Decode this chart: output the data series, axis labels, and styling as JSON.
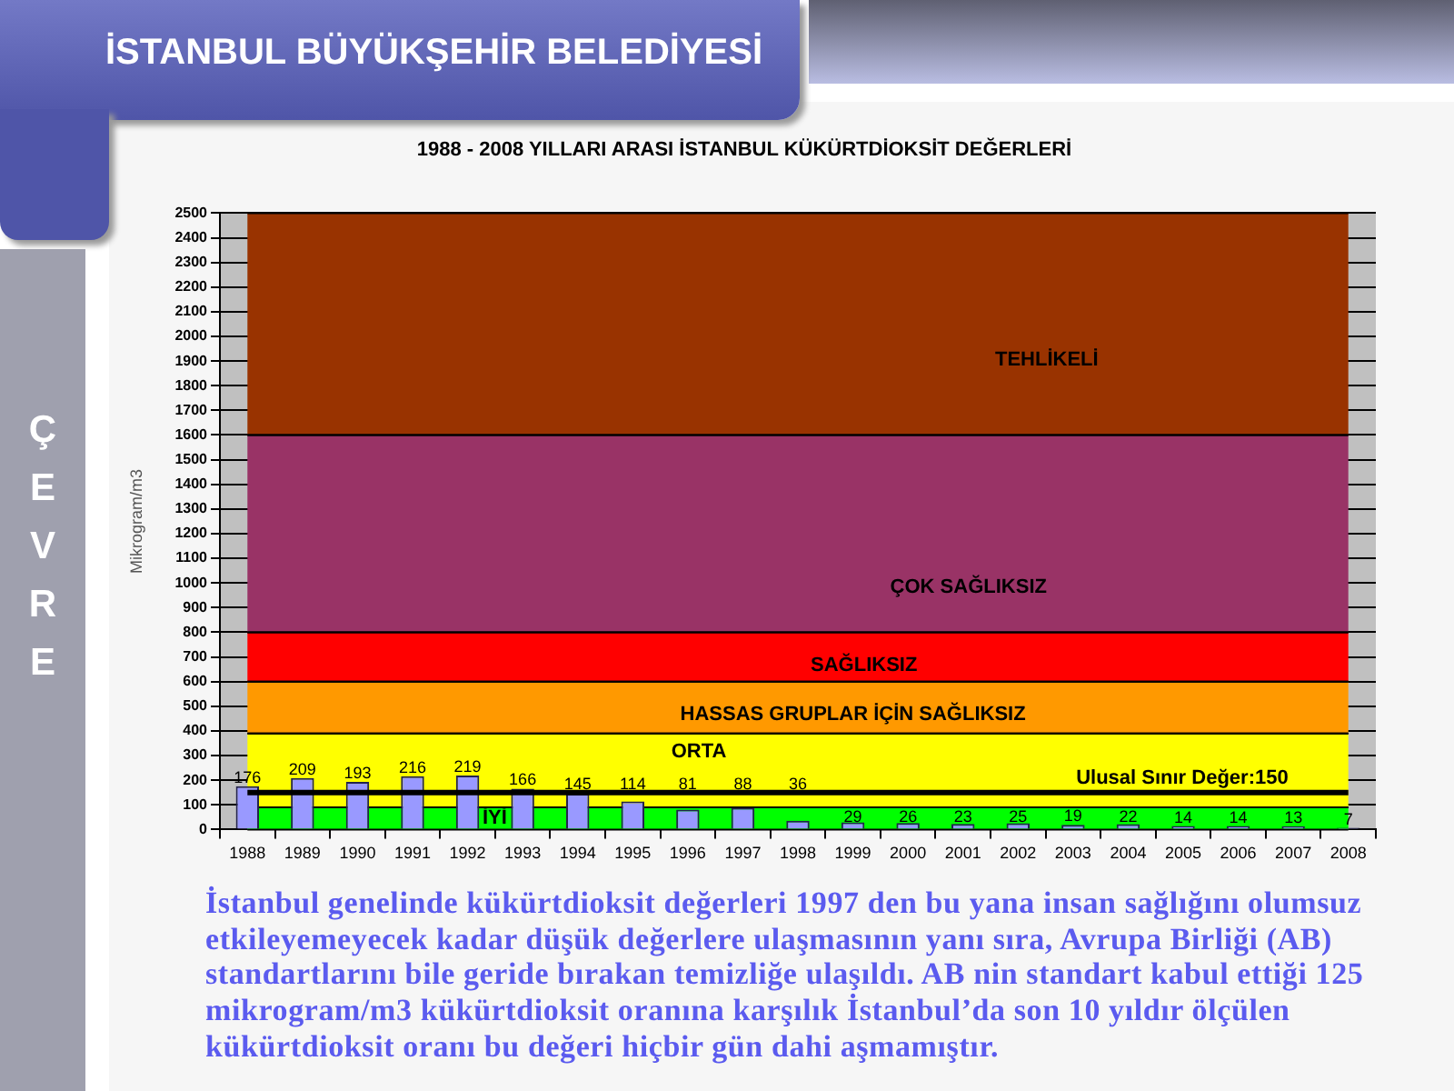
{
  "chart_data": {
    "type": "bar",
    "title": "1988 - 2008 YILLARI ARASI İSTANBUL KÜKÜRTDİOKSİT DEĞERLERİ",
    "ylabel": "Mikrogram/m3",
    "categories": [
      "1988",
      "1989",
      "1990",
      "1991",
      "1992",
      "1993",
      "1994",
      "1995",
      "1996",
      "1997",
      "1998",
      "1999",
      "2000",
      "2001",
      "2002",
      "2003",
      "2004",
      "2005",
      "2006",
      "2007",
      "2008"
    ],
    "values": [
      176,
      209,
      193,
      216,
      219,
      166,
      145,
      114,
      81,
      88,
      36,
      29,
      26,
      23,
      25,
      19,
      22,
      14,
      14,
      13,
      7
    ],
    "color": "#9999ff",
    "data_labels": true,
    "ylim": [
      0,
      2500
    ],
    "yticks": [
      0,
      100,
      200,
      300,
      400,
      500,
      600,
      700,
      800,
      900,
      1000,
      1100,
      1200,
      1300,
      1400,
      1500,
      1600,
      1700,
      1800,
      1900,
      2000,
      2100,
      2200,
      2300,
      2400,
      2500
    ],
    "grid": "y",
    "bands": [
      {
        "axis": "y",
        "from": 0,
        "to": 90,
        "label": "İYİ",
        "color": "#00ff00"
      },
      {
        "axis": "y",
        "from": 90,
        "to": 390,
        "label": "ORTA",
        "color": "#ffff00"
      },
      {
        "axis": "y",
        "from": 390,
        "to": 600,
        "label": "HASSAS GRUPLAR İÇİN SAĞLIKSIZ",
        "color": "#ff9900"
      },
      {
        "axis": "y",
        "from": 600,
        "to": 800,
        "label": "SAĞLIKSIZ",
        "color": "#ff0000"
      },
      {
        "axis": "y",
        "from": 800,
        "to": 1600,
        "label": "ÇOK SAĞLIKSIZ",
        "color": "#993366"
      },
      {
        "axis": "y",
        "from": 1600,
        "to": 2500,
        "label": "TEHLİKELİ",
        "color": "#993300"
      }
    ],
    "ref_lines": [
      {
        "axis": "y",
        "value": 150,
        "label": "Ulusal Sınır Değer:150",
        "color": "#000000"
      }
    ],
    "annotations": [
      "İSTANBUL BÜYÜKŞEHİR BELEDİYESİ",
      "ÇEVRE",
      "İstanbul genelinde kükürtdioksit değerleri 1997 den bu yana insan sağlığını olumsuz etkileyemeyecek kadar düşük değerlere ulaşmasının yanı sıra, Avrupa Birliği (AB) standartlarını bile geride bırakan temizliğe ulaşıldı. AB nin standart kabul ettiği 125 mikrogram/m3 kükürtdioksit oranına karşılık İstanbul’da son 10 yıldır ölçülen kükürtdioksit oranı bu değeri hiçbir gün dahi aşmamıştır."
    ]
  }
}
